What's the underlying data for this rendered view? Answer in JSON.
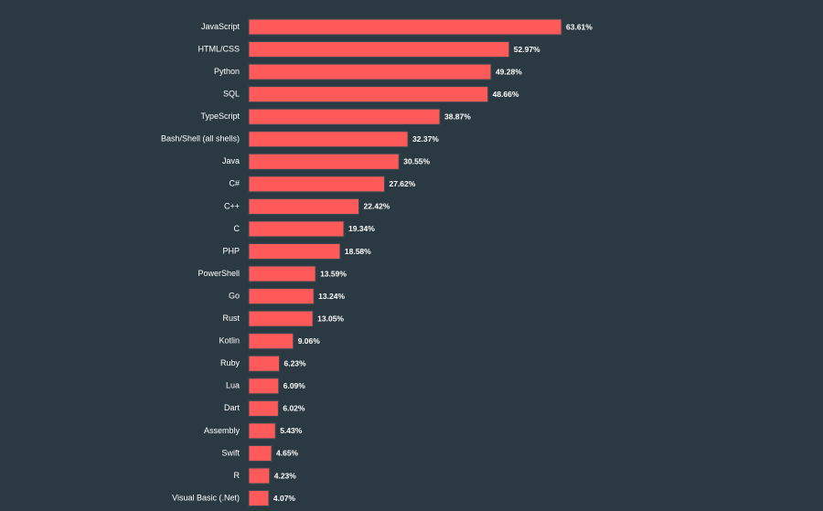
{
  "chart_data": {
    "type": "bar",
    "orientation": "horizontal",
    "categories": [
      "JavaScript",
      "HTML/CSS",
      "Python",
      "SQL",
      "TypeScript",
      "Bash/Shell (all shells)",
      "Java",
      "C#",
      "C++",
      "C",
      "PHP",
      "PowerShell",
      "Go",
      "Rust",
      "Kotlin",
      "Ruby",
      "Lua",
      "Dart",
      "Assembly",
      "Swift",
      "R",
      "Visual Basic (.Net)"
    ],
    "values": [
      63.61,
      52.97,
      49.28,
      48.66,
      38.87,
      32.37,
      30.55,
      27.62,
      22.42,
      19.34,
      18.58,
      13.59,
      13.24,
      13.05,
      9.06,
      6.23,
      6.09,
      6.02,
      5.43,
      4.65,
      4.23,
      4.07
    ],
    "value_labels": [
      "63.61%",
      "52.97%",
      "49.28%",
      "48.66%",
      "38.87%",
      "32.37%",
      "30.55%",
      "27.62%",
      "22.42%",
      "19.34%",
      "18.58%",
      "13.59%",
      "13.24%",
      "13.05%",
      "9.06%",
      "6.23%",
      "6.09%",
      "6.02%",
      "5.43%",
      "4.65%",
      "4.23%",
      "4.07%"
    ],
    "unit": "%",
    "xlim": [
      0,
      63.61
    ],
    "grid": false,
    "colors": {
      "background": "#2b3a42",
      "bar": "#ff5a5a",
      "bar_stroke": "#3a4a52",
      "text": "#ffffff"
    }
  }
}
